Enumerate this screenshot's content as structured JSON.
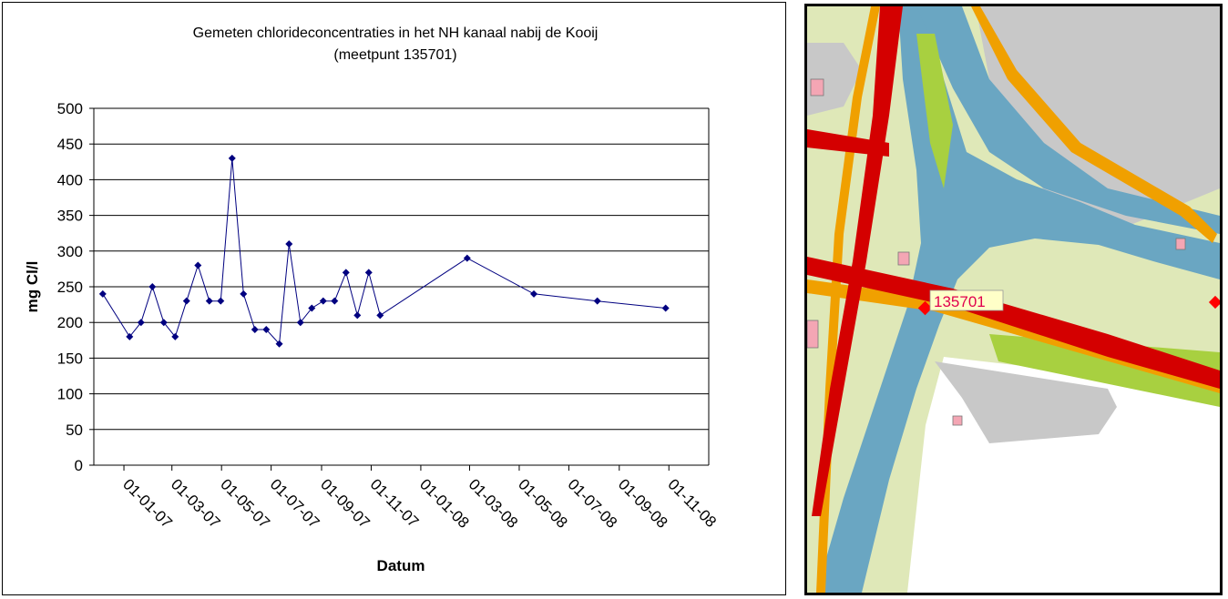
{
  "chart_data": {
    "type": "line",
    "title": "Gemeten chlorideconcentraties in het NH kanaal nabij de Kooij",
    "subtitle": "(meetpunt 135701)",
    "xlabel": "Datum",
    "ylabel": "mg Cl/l",
    "ylim": [
      0,
      500
    ],
    "yticks": [
      "0",
      "50",
      "100",
      "150",
      "200",
      "250",
      "300",
      "350",
      "400",
      "450",
      "500"
    ],
    "xticks": [
      "01-01-07",
      "01-03-07",
      "01-05-07",
      "01-07-07",
      "01-09-07",
      "01-11-07",
      "01-01-08",
      "01-03-08",
      "01-05-08",
      "01-07-08",
      "01-09-08",
      "01-11-08"
    ],
    "grid": true,
    "series": [
      {
        "color": "#000080",
        "x": [
          "2006-12-06",
          "2007-01-08",
          "2007-01-22",
          "2007-02-05",
          "2007-02-19",
          "2007-03-05",
          "2007-03-19",
          "2007-04-02",
          "2007-04-16",
          "2007-04-30",
          "2007-05-14",
          "2007-05-28",
          "2007-06-11",
          "2007-06-25",
          "2007-07-11",
          "2007-07-23",
          "2007-08-06",
          "2007-08-20",
          "2007-09-03",
          "2007-09-17",
          "2007-10-01",
          "2007-10-15",
          "2007-10-29",
          "2007-11-12",
          "2008-02-27",
          "2008-05-19",
          "2008-08-05",
          "2008-10-28"
        ],
        "values": [
          240,
          180,
          200,
          250,
          200,
          180,
          230,
          280,
          230,
          230,
          430,
          240,
          190,
          190,
          170,
          310,
          200,
          220,
          230,
          230,
          270,
          210,
          270,
          210,
          290,
          240,
          230,
          220
        ]
      }
    ]
  },
  "map": {
    "label": "135701",
    "colors": {
      "water": "#6aa6c2",
      "motorway": "#d40000",
      "road": "#f0a000",
      "land": "#dfe8b8",
      "built": "#c8c8c8",
      "green": "#a8d040",
      "marker": "#ff0000",
      "label_text": "#e0004e",
      "label_bg": "#ffffc8"
    }
  }
}
